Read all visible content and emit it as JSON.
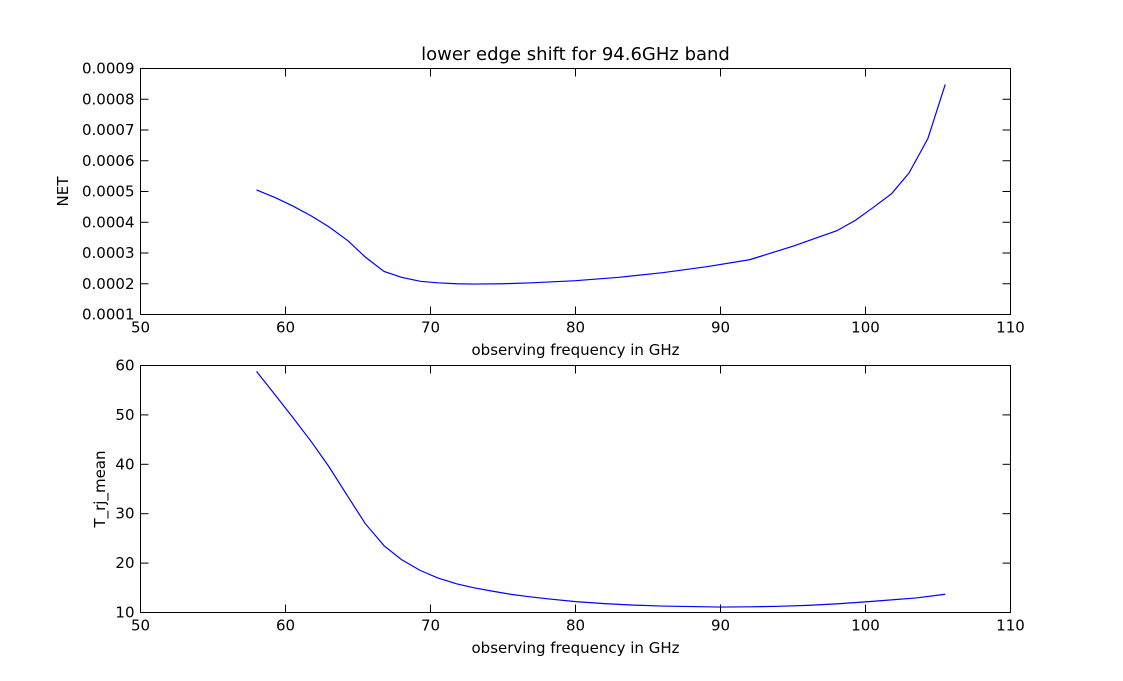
{
  "chart_data": [
    {
      "type": "line",
      "title": "lower edge shift for 94.6GHz band",
      "xlabel": "observing frequency in GHz",
      "ylabel": "NET",
      "xlim": [
        50,
        110
      ],
      "ylim": [
        0.0001,
        0.0009
      ],
      "xticks": [
        50,
        60,
        70,
        80,
        90,
        100,
        110
      ],
      "yticks": [
        0.0001,
        0.0002,
        0.0003,
        0.0004,
        0.0005,
        0.0006,
        0.0007,
        0.0008,
        0.0009
      ],
      "xtick_labels": [
        "50",
        "60",
        "70",
        "80",
        "90",
        "100",
        "110"
      ],
      "ytick_labels": [
        "0.0001",
        "0.0002",
        "0.0003",
        "0.0004",
        "0.0005",
        "0.0006",
        "0.0007",
        "0.0008",
        "0.0009"
      ],
      "grid": false,
      "line_color": "#0000ff",
      "series": [
        {
          "x": [
            58.0,
            59.3,
            60.5,
            61.8,
            63.0,
            64.3,
            65.5,
            66.8,
            68.0,
            69.3,
            70.5,
            71.8,
            73.0,
            75.0,
            77.0,
            80.0,
            83.0,
            86.0,
            89.0,
            92.0,
            95.0,
            98.0,
            99.3,
            100.5,
            101.8,
            103.0,
            104.3,
            105.5
          ],
          "y": [
            0.000505,
            0.00048,
            0.000453,
            0.00042,
            0.000385,
            0.00034,
            0.000287,
            0.00024,
            0.000221,
            0.000208,
            0.000203,
            0.0002,
            0.000199,
            0.0002,
            0.000203,
            0.00021,
            0.000221,
            0.000236,
            0.000255,
            0.000278,
            0.000322,
            0.000372,
            0.000406,
            0.000447,
            0.000493,
            0.00056,
            0.000672,
            0.000848
          ]
        }
      ]
    },
    {
      "type": "line",
      "title": "",
      "xlabel": "observing frequency in GHz",
      "ylabel": "T_rj_mean",
      "xlim": [
        50,
        110
      ],
      "ylim": [
        10,
        60
      ],
      "xticks": [
        50,
        60,
        70,
        80,
        90,
        100,
        110
      ],
      "yticks": [
        10,
        20,
        30,
        40,
        50,
        60
      ],
      "xtick_labels": [
        "50",
        "60",
        "70",
        "80",
        "90",
        "100",
        "110"
      ],
      "ytick_labels": [
        "10",
        "20",
        "30",
        "40",
        "50",
        "60"
      ],
      "grid": false,
      "line_color": "#0000ff",
      "series": [
        {
          "x": [
            58.0,
            59.3,
            60.5,
            61.8,
            63.0,
            64.3,
            65.5,
            66.8,
            68.0,
            69.3,
            70.5,
            71.8,
            73.0,
            74.3,
            75.5,
            76.8,
            78.0,
            80.0,
            82.0,
            84.0,
            86.0,
            88.0,
            90.0,
            92.0,
            94.0,
            96.0,
            98.0,
            100.0,
            102.0,
            103.5,
            105.5
          ],
          "y": [
            58.8,
            54.0,
            49.5,
            44.5,
            39.5,
            33.5,
            28.0,
            23.5,
            20.7,
            18.5,
            17.0,
            15.8,
            15.0,
            14.3,
            13.7,
            13.2,
            12.8,
            12.2,
            11.8,
            11.5,
            11.3,
            11.2,
            11.1,
            11.15,
            11.25,
            11.45,
            11.75,
            12.15,
            12.6,
            12.95,
            13.7
          ]
        }
      ]
    }
  ]
}
